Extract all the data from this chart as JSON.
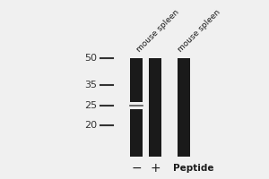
{
  "background_color": "#f0f0f0",
  "lane_color": "#1a1a1a",
  "mw_labels": [
    50,
    35,
    25,
    20
  ],
  "lane_labels": [
    "mouse spleen",
    "mouse spleen"
  ],
  "minus_label": "−",
  "plus_label": "+",
  "peptide_label": "Peptide"
}
